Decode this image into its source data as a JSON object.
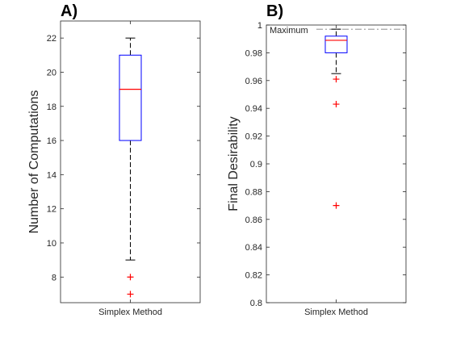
{
  "chart_data": [
    {
      "type": "box",
      "panel_label": "A)",
      "ylabel": "Number of Computations",
      "xlabel": "",
      "categories": [
        "Simplex Method"
      ],
      "ylim": [
        6.5,
        23
      ],
      "yticks": [
        8,
        10,
        12,
        14,
        16,
        18,
        20,
        22
      ],
      "box": {
        "whisker_low": 9,
        "q1": 16,
        "median": 19,
        "q3": 21,
        "whisker_high": 22
      },
      "outliers": [
        8,
        7
      ]
    },
    {
      "type": "box",
      "panel_label": "B)",
      "ylabel": "Final Desirability",
      "xlabel": "",
      "categories": [
        "Simplex Method"
      ],
      "ylim": [
        0.8,
        1.0
      ],
      "yticks": [
        "0.8",
        "0.82",
        "0.84",
        "0.86",
        "0.88",
        "0.9",
        "0.92",
        "0.94",
        "0.96",
        "0.98",
        "1"
      ],
      "box": {
        "whisker_low": 0.965,
        "q1": 0.98,
        "median": 0.989,
        "q3": 0.992,
        "whisker_high": 0.997
      },
      "outliers": [
        0.961,
        0.943,
        0.87
      ],
      "reference_line": {
        "label": "Maximum",
        "value": 0.997
      }
    }
  ],
  "colors": {
    "box": "#0000ff",
    "median": "#ff0000",
    "outlier": "#ff0000",
    "whisker": "#000000",
    "axes": "#262626",
    "reference": "#7f7f7f"
  }
}
